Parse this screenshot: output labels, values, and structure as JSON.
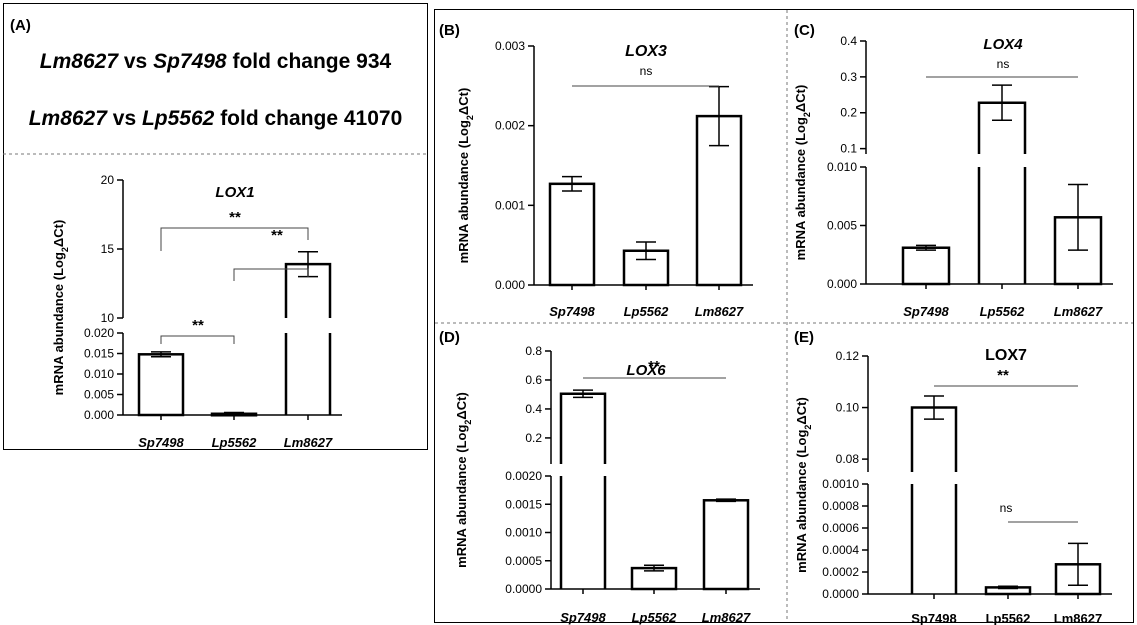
{
  "fold_changes": [
    {
      "a": "Lm8627",
      "vs": "vs",
      "b": "Sp7498",
      "text": "fold change",
      "value": "934"
    },
    {
      "a": "Lm8627",
      "vs": "vs",
      "b": "Lp5562",
      "text": "fold change",
      "value": "41070"
    }
  ],
  "chart_data": [
    {
      "panel": "(A)",
      "type": "bar",
      "title": "LOX1",
      "title_italic": true,
      "ylabel": "mRNA abundance (Log2ΔCt)",
      "categories": [
        "Sp7498",
        "Lp5562",
        "Lm8627"
      ],
      "values": [
        0.0148,
        0.0003,
        13.9
      ],
      "errors": [
        0.0006,
        0.0003,
        0.9
      ],
      "broken_axis": {
        "lower": [
          0,
          0.02
        ],
        "upper": [
          10,
          20
        ]
      },
      "yticks_lower": [
        "0.000",
        "0.005",
        "0.010",
        "0.015",
        "0.020"
      ],
      "yticks_upper": [
        "10",
        "15",
        "20"
      ],
      "significance": [
        {
          "from": 0,
          "to": 2,
          "label": "**"
        },
        {
          "from": 1,
          "to": 2,
          "label": "**"
        },
        {
          "from": 0,
          "to": 1,
          "label": "**"
        }
      ]
    },
    {
      "panel": "(B)",
      "type": "bar",
      "title": "LOX3",
      "title_italic": true,
      "ylabel": "mRNA abundance (Log2ΔCt)",
      "categories": [
        "Sp7498",
        "Lp5562",
        "Lm8627"
      ],
      "values": [
        0.00127,
        0.00043,
        0.00212
      ],
      "errors": [
        9e-05,
        0.00011,
        0.00037
      ],
      "ylim": [
        0,
        0.003
      ],
      "yticks": [
        "0.000",
        "0.001",
        "0.002",
        "0.003"
      ],
      "significance": [
        {
          "from": 0,
          "to": 2,
          "label": "ns"
        }
      ]
    },
    {
      "panel": "(C)",
      "type": "bar",
      "title": "LOX4",
      "title_italic": true,
      "ylabel": "mRNA abundance (Log2ΔCt)",
      "categories": [
        "Sp7498",
        "Lp5562",
        "Lm8627"
      ],
      "values": [
        0.0031,
        0.228,
        0.0057
      ],
      "errors": [
        0.0002,
        0.049,
        0.0028
      ],
      "broken_axis": {
        "lower": [
          0,
          0.01
        ],
        "upper": [
          0.085,
          0.4
        ]
      },
      "yticks_lower": [
        "0.000",
        "0.005",
        "0.010"
      ],
      "yticks_upper": [
        "0.1",
        "0.2",
        "0.3",
        "0.4"
      ],
      "significance": [
        {
          "from": 0,
          "to": 2,
          "label": "ns"
        }
      ]
    },
    {
      "panel": "(D)",
      "type": "bar",
      "title": "LOX6",
      "title_italic": true,
      "ylabel": "mRNA abundance (Log2ΔCt)",
      "categories": [
        "Sp7498",
        "Lp5562",
        "Lm8627"
      ],
      "values": [
        0.505,
        0.00037,
        0.00157
      ],
      "errors": [
        0.025,
        5e-05,
        2e-05
      ],
      "broken_axis": {
        "lower": [
          0,
          0.002
        ],
        "upper": [
          0.02,
          0.8
        ]
      },
      "yticks_lower": [
        "0.0000",
        "0.0005",
        "0.0010",
        "0.0015",
        "0.0020"
      ],
      "yticks_upper": [
        "0.2",
        "0.4",
        "0.6",
        "0.8"
      ],
      "significance": [
        {
          "from": 0,
          "to": 2,
          "label": "**"
        }
      ]
    },
    {
      "panel": "(E)",
      "type": "bar",
      "title": "LOX7",
      "title_italic": false,
      "ylabel": "mRNA abundance (Log2ΔCt)",
      "categories": [
        "Sp7498",
        "Lp5562",
        "Lm8627"
      ],
      "values": [
        0.1,
        6e-05,
        0.00027
      ],
      "errors": [
        0.0045,
        1e-05,
        0.00019
      ],
      "broken_axis": {
        "lower": [
          0,
          0.001
        ],
        "upper": [
          0.075,
          0.12
        ]
      },
      "yticks_lower": [
        "0.0000",
        "0.0002",
        "0.0004",
        "0.0006",
        "0.0008",
        "0.0010"
      ],
      "yticks_upper": [
        "0.08",
        "0.10",
        "0.12"
      ],
      "significance": [
        {
          "from": 0,
          "to": 2,
          "label": "**"
        },
        {
          "from": 1,
          "to": 2,
          "label": "ns"
        }
      ]
    }
  ]
}
